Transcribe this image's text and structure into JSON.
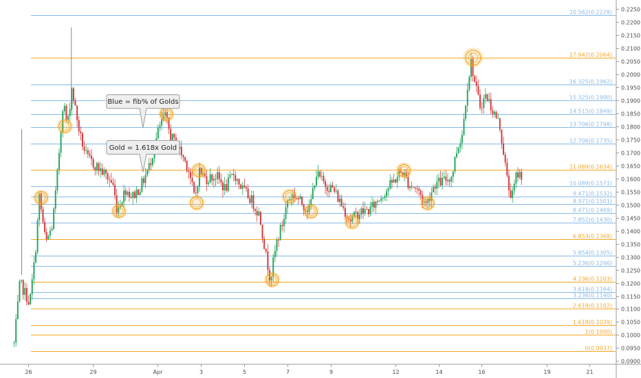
{
  "chart_data": {
    "type": "candlestick",
    "colors": {
      "up": "#26a65b",
      "down": "#d23b3b",
      "gold": "#f5a623",
      "blue": "#86b9e6",
      "callout_fill": "#efefef",
      "callout_border": "#9a9a9a"
    },
    "y_axis": {
      "range": [
        0.0885,
        0.2275
      ],
      "ticks": [
        "0.0900",
        "0.0950",
        "0.1000",
        "0.1050",
        "0.1100",
        "0.1150",
        "0.1200",
        "0.1250",
        "0.1300",
        "0.1350",
        "0.1400",
        "0.1450",
        "0.1500",
        "0.1550",
        "0.1600",
        "0.1650",
        "0.1700",
        "0.1750",
        "0.1800",
        "0.1850",
        "0.1900",
        "0.1950",
        "0.2000",
        "0.2050",
        "0.2100",
        "0.2150",
        "0.2200",
        "0.2250"
      ],
      "tick_values": [
        0.09,
        0.095,
        0.1,
        0.105,
        0.11,
        0.115,
        0.12,
        0.125,
        0.13,
        0.135,
        0.14,
        0.145,
        0.15,
        0.155,
        0.16,
        0.165,
        0.17,
        0.175,
        0.18,
        0.185,
        0.19,
        0.195,
        0.2,
        0.205,
        0.21,
        0.215,
        0.22,
        0.225
      ]
    },
    "x_axis": {
      "range_days": [
        25.3,
        21.9
      ],
      "labels": [
        {
          "text": "26",
          "day": 26
        },
        {
          "text": "29",
          "day": 29
        },
        {
          "text": "Apr",
          "day": 1
        },
        {
          "text": "3",
          "day": 3
        },
        {
          "text": "5",
          "day": 5
        },
        {
          "text": "7",
          "day": 7
        },
        {
          "text": "9",
          "day": 9
        },
        {
          "text": "12",
          "day": 12
        },
        {
          "text": "14",
          "day": 14
        },
        {
          "text": "16",
          "day": 16
        },
        {
          "text": "19",
          "day": 19
        },
        {
          "text": "21",
          "day": 21
        }
      ]
    },
    "fib_levels": [
      {
        "label": "20.562(0.2228)",
        "value": 0.2228,
        "kind": "blue"
      },
      {
        "label": "17.942(0.2064)",
        "value": 0.2064,
        "kind": "gold"
      },
      {
        "label": "16.325(0.1962)",
        "value": 0.1962,
        "kind": "blue"
      },
      {
        "label": "15.325(0.1900)",
        "value": 0.19,
        "kind": "blue"
      },
      {
        "label": "14.515(0.1849)",
        "value": 0.1849,
        "kind": "blue"
      },
      {
        "label": "13.706(0.1798)",
        "value": 0.1798,
        "kind": "blue"
      },
      {
        "label": "12.706(0.1735)",
        "value": 0.1735,
        "kind": "blue"
      },
      {
        "label": "11.089(0.1634)",
        "value": 0.1634,
        "kind": "gold"
      },
      {
        "label": "10.089(0.1571)",
        "value": 0.1571,
        "kind": "blue"
      },
      {
        "label": "9.471(0.1532)",
        "value": 0.1532,
        "kind": "blue"
      },
      {
        "label": "8.971(0.1501)",
        "value": 0.1501,
        "kind": "blue"
      },
      {
        "label": "8.471(0.1469)",
        "value": 0.1469,
        "kind": "blue"
      },
      {
        "label": "7.852(0.1430)",
        "value": 0.143,
        "kind": "blue"
      },
      {
        "label": "6.853(0.1368)",
        "value": 0.1368,
        "kind": "gold"
      },
      {
        "label": "5.854(0.1305)",
        "value": 0.1305,
        "kind": "blue"
      },
      {
        "label": "5.236(0.1266)",
        "value": 0.1266,
        "kind": "blue"
      },
      {
        "label": "4.236(0.1203)",
        "value": 0.1203,
        "kind": "gold"
      },
      {
        "label": "3.618(0.1164)",
        "value": 0.1164,
        "kind": "blue"
      },
      {
        "label": "3.236(0.1140)",
        "value": 0.114,
        "kind": "blue"
      },
      {
        "label": "2.618(0.1102)",
        "value": 0.1102,
        "kind": "gold"
      },
      {
        "label": "1.618(0.1039)",
        "value": 0.1039,
        "kind": "gold"
      },
      {
        "label": "1(0.1000)",
        "value": 0.1,
        "kind": "gold"
      },
      {
        "label": "0(0.0937)",
        "value": 0.0937,
        "kind": "gold"
      }
    ],
    "annotations": [
      {
        "text": "Blue = fib% of Golds",
        "day": 31.3,
        "value": 0.1896,
        "pointer_value": 0.1795
      },
      {
        "text": "Gold = 1.618x Gold",
        "day": 31.3,
        "value": 0.172,
        "pointer_value": 0.1625
      }
    ],
    "highlight_markers": [
      {
        "day": 26.6,
        "value": 0.1527,
        "size": "small"
      },
      {
        "day": 27.7,
        "value": 0.1801,
        "size": "small"
      },
      {
        "day": 30.2,
        "value": 0.1475,
        "size": "small"
      },
      {
        "day": 32.4,
        "value": 0.1848,
        "size": "small"
      },
      {
        "day": 33.8,
        "value": 0.1507,
        "size": "small"
      },
      {
        "day": 33.9,
        "value": 0.1631,
        "size": "small"
      },
      {
        "day": 37.3,
        "value": 0.1212,
        "size": "small"
      },
      {
        "day": 38.1,
        "value": 0.1531,
        "size": "small"
      },
      {
        "day": 39.1,
        "value": 0.1474,
        "size": "small"
      },
      {
        "day": 41.0,
        "value": 0.1434,
        "size": "small"
      },
      {
        "day": 43.4,
        "value": 0.1631,
        "size": "small"
      },
      {
        "day": 44.5,
        "value": 0.1506,
        "size": "small"
      },
      {
        "day": 46.6,
        "value": 0.2064,
        "size": "large"
      }
    ],
    "anchors": [
      [
        25.3,
        0.1
      ],
      [
        25.4,
        0.0937
      ],
      [
        25.7,
        0.12
      ],
      [
        26.0,
        0.115
      ],
      [
        26.15,
        0.112
      ],
      [
        26.4,
        0.13
      ],
      [
        26.6,
        0.153
      ],
      [
        26.9,
        0.135
      ],
      [
        27.2,
        0.142
      ],
      [
        27.4,
        0.158
      ],
      [
        27.7,
        0.19
      ],
      [
        27.9,
        0.18
      ],
      [
        28.1,
        0.195
      ],
      [
        28.3,
        0.185
      ],
      [
        28.5,
        0.176
      ],
      [
        28.8,
        0.168
      ],
      [
        29.2,
        0.165
      ],
      [
        29.6,
        0.162
      ],
      [
        30.0,
        0.158
      ],
      [
        30.2,
        0.148
      ],
      [
        30.6,
        0.156
      ],
      [
        30.9,
        0.153
      ],
      [
        31.3,
        0.157
      ],
      [
        31.7,
        0.165
      ],
      [
        32.1,
        0.178
      ],
      [
        32.4,
        0.1845
      ],
      [
        32.7,
        0.176
      ],
      [
        33.1,
        0.171
      ],
      [
        33.5,
        0.164
      ],
      [
        33.8,
        0.152
      ],
      [
        34.0,
        0.163
      ],
      [
        34.3,
        0.16
      ],
      [
        34.8,
        0.161
      ],
      [
        35.2,
        0.156
      ],
      [
        35.6,
        0.162
      ],
      [
        36.0,
        0.156
      ],
      [
        36.4,
        0.152
      ],
      [
        36.8,
        0.146
      ],
      [
        37.1,
        0.13
      ],
      [
        37.3,
        0.1215
      ],
      [
        37.6,
        0.136
      ],
      [
        37.9,
        0.144
      ],
      [
        38.1,
        0.152
      ],
      [
        38.4,
        0.154
      ],
      [
        38.7,
        0.151
      ],
      [
        39.1,
        0.148
      ],
      [
        39.4,
        0.162
      ],
      [
        39.8,
        0.158
      ],
      [
        40.2,
        0.156
      ],
      [
        40.6,
        0.15
      ],
      [
        41.0,
        0.144
      ],
      [
        41.4,
        0.147
      ],
      [
        41.9,
        0.148
      ],
      [
        42.3,
        0.152
      ],
      [
        42.8,
        0.157
      ],
      [
        43.4,
        0.163
      ],
      [
        43.7,
        0.158
      ],
      [
        44.1,
        0.156
      ],
      [
        44.5,
        0.15
      ],
      [
        44.9,
        0.158
      ],
      [
        45.3,
        0.159
      ],
      [
        45.7,
        0.161
      ],
      [
        45.9,
        0.17
      ],
      [
        46.2,
        0.178
      ],
      [
        46.4,
        0.195
      ],
      [
        46.6,
        0.205
      ],
      [
        46.8,
        0.195
      ],
      [
        47.0,
        0.188
      ],
      [
        47.3,
        0.192
      ],
      [
        47.6,
        0.186
      ],
      [
        47.9,
        0.181
      ],
      [
        48.1,
        0.17
      ],
      [
        48.3,
        0.157
      ],
      [
        48.5,
        0.153
      ],
      [
        48.7,
        0.162
      ],
      [
        48.9,
        0.1615
      ]
    ],
    "candle_start_day": 25.35,
    "candle_end_day": 48.9,
    "candle_step_days": 0.0833
  }
}
